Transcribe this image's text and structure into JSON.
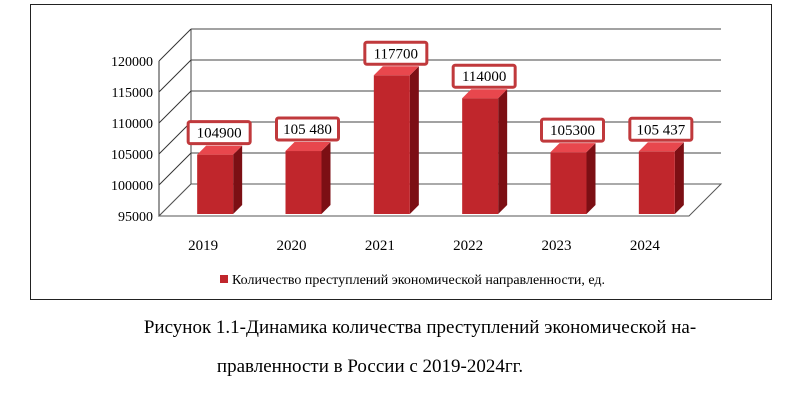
{
  "chart_data": {
    "type": "bar",
    "categories": [
      "2019",
      "2020",
      "2021",
      "2022",
      "2023",
      "2024"
    ],
    "values": [
      104900,
      105480,
      117700,
      114000,
      105300,
      105437
    ],
    "data_labels": [
      "104900",
      "105 480",
      "117700",
      "114000",
      "105300",
      "105 437"
    ],
    "y_ticks": [
      "95000",
      "100000",
      "105000",
      "110000",
      "115000",
      "120000"
    ],
    "ylim": [
      95000,
      120000
    ],
    "legend": "Количество преступлений экономической направленности, ед.",
    "legend_position": "bottom",
    "grid": true,
    "style": "3d-column",
    "colors": {
      "bar_front": "#c0262c",
      "bar_top": "#e8474d",
      "bar_side": "#7c0f14",
      "label_border": "#c0393c"
    }
  },
  "caption": {
    "line1": "Рисунок 1.1-Динамика количества преступлений экономической на-",
    "line2": "правленности в России с 2019-2024гг."
  }
}
